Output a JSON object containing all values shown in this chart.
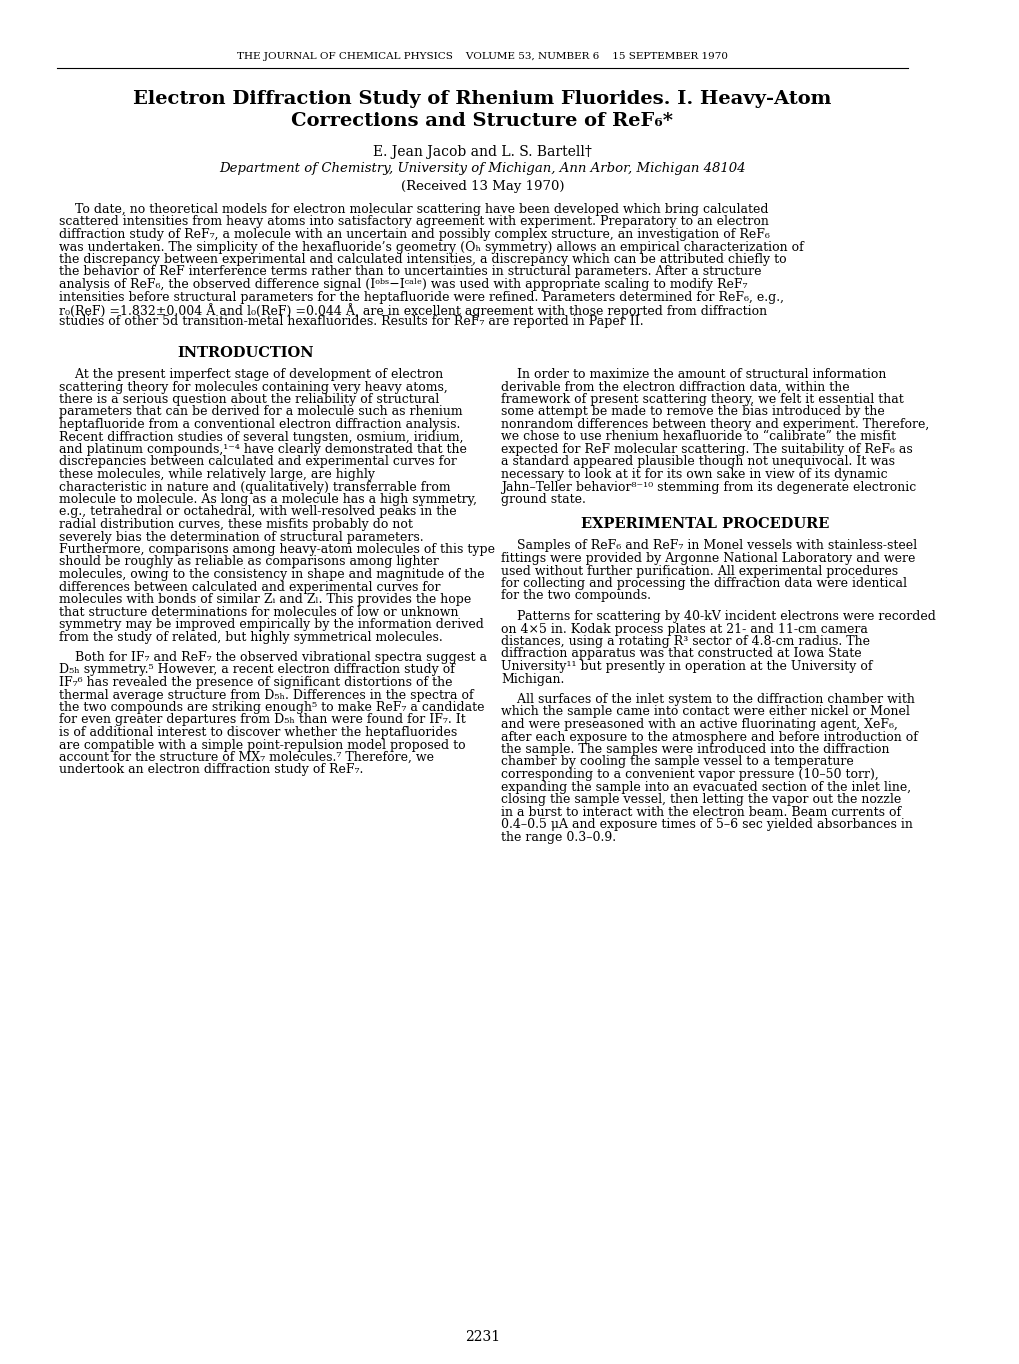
{
  "header": "THE JOURNAL OF CHEMICAL PHYSICS    VOLUME 53, NUMBER 6    15 SEPTEMBER 1970",
  "title_line1": "Electron Diffraction Study of Rhenium Fluorides. I. Heavy-Atom",
  "title_line2": "Corrections and Structure of ReF₆*",
  "authors": "E. Jean Jacob and L. S. Bartell†",
  "affiliation": "Department of Chemistry, University of Michigan, Ann Arbor, Michigan 48104",
  "received": "(Received 13 May 1970)",
  "abstract": "To date, no theoretical models for electron molecular scattering have been developed which bring calculated scattered intensities from heavy atoms into satisfactory agreement with experiment. Preparatory to an electron diffraction study of ReF₇, a molecule with an uncertain and possibly complex structure, an investigation of ReF₆ was undertaken. The simplicity of the hexafluoride’s geometry (Oₕ symmetry) allows an empirical characterization of the discrepancy between experimental and calculated intensities, a discrepancy which can be attributed chiefly to the behavior of ReF interference terms rather than to uncertainties in structural parameters. After a structure analysis of ReF₆, the observed difference signal (Iᵒᵇˢ−Iᶜᵃˡᵉ) was used with appropriate scaling to modify ReF₇ intensities before structural parameters for the heptafluoride were refined. Parameters determined for ReF₆, e.g., r₀(ReF) =1.832±0.004 Å and l₀(ReF) =0.044 Å, are in excellent agreement with those reported from diffraction studies of other 5d transition-metal hexafluorides. Results for ReF₇ are reported in Paper II.",
  "intro_heading": "INTRODUCTION",
  "intro_text": "At the present imperfect stage of development of electron scattering theory for molecules containing very heavy atoms, there is a serious question about the reliability of structural parameters that can be derived for a molecule such as rhenium heptafluoride from a conventional electron diffraction analysis. Recent diffraction studies of several tungsten, osmium, iridium, and platinum compounds,¹⁻⁴ have clearly demonstrated that the discrepancies between calculated and experimental curves for these molecules, while relatively large, are highly characteristic in nature and (qualitatively) transferrable from molecule to molecule. As long as a molecule has a high symmetry, e.g., tetrahedral or octahedral, with well-resolved peaks in the radial distribution curves, these misfits probably do not severely bias the determination of structural parameters. Furthermore, comparisons among heavy-atom molecules of this type should be roughly as reliable as comparisons among lighter molecules, owing to the consistency in shape and magnitude of the differences between calculated and experimental curves for molecules with bonds of similar Zᵢ and Zₗ. This provides the hope that structure determinations for molecules of low or unknown symmetry may be improved empirically by the information derived from the study of related, but highly symmetrical molecules.",
  "intro_text2": "Both for IF₇ and ReF₇ the observed vibrational spectra suggest a D₅ₕ symmetry.⁵ However, a recent electron diffraction study of IF₇⁶ has revealed the presence of significant distortions of the thermal average structure from D₅ₕ. Differences in the spectra of the two compounds are striking enough⁵ to make ReF₇ a candidate for even greater departures from D₅ₕ than were found for IF₇. It is of additional interest to discover whether the heptafluorides are compatible with a simple point-repulsion model proposed to account for the structure of MX₇ molecules.⁷ Therefore, we undertook an electron diffraction study of ReF₇.",
  "right_col_intro": "In order to maximize the amount of structural information derivable from the electron diffraction data, within the framework of present scattering theory, we felt it essential that some attempt be made to remove the bias introduced by the nonrandom differences between theory and experiment. Therefore, we chose to use rhenium hexafluoride to “calibrate” the misfit expected for ReF molecular scattering. The suitability of ReF₆ as a standard appeared plausible though not unequivocal. It was necessary to look at it for its own sake in view of its dynamic Jahn–Teller behavior⁸⁻¹⁰ stemming from its degenerate electronic ground state.",
  "exp_heading": "EXPERIMENTAL PROCEDURE",
  "exp_text": "Samples of ReF₆ and ReF₇ in Monel vessels with stainless-steel fittings were provided by Argonne National Laboratory and were used without further purification. All experimental procedures for collecting and processing the diffraction data were identical for the two compounds.",
  "exp_text2": "Patterns for scattering by 40-kV incident electrons were recorded on 4×5 in. Kodak process plates at 21- and 11-cm camera distances, using a rotating R³ sector of 4.8-cm radius. The diffraction apparatus was that constructed at Iowa State University¹¹ but presently in operation at the University of Michigan.",
  "exp_text3": "All surfaces of the inlet system to the diffraction chamber with which the sample came into contact were either nickel or Monel and were preseasoned with an active fluorinating agent, XeF₆, after each exposure to the atmosphere and before introduction of the sample. The samples were introduced into the diffraction chamber by cooling the sample vessel to a temperature corresponding to a convenient vapor pressure (10–50 torr), expanding the sample into an evacuated section of the inlet line, closing the sample vessel, then letting the vapor out the nozzle in a burst to interact with the electron beam. Beam currents of 0.4–0.5 μA and exposure times of 5–6 sec yielded absorbances in the range 0.3–0.9.",
  "page_number": "2231",
  "bg_color": "#ffffff",
  "text_color": "#000000"
}
